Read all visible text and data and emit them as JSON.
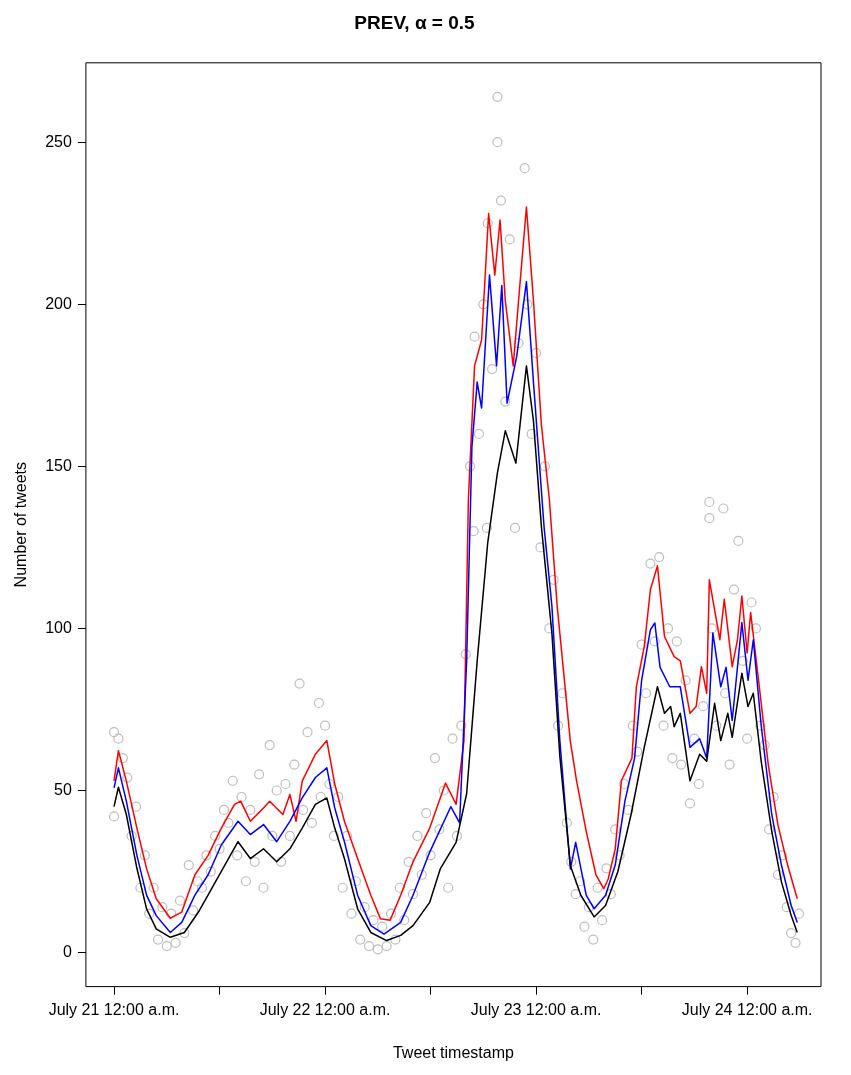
{
  "chart_data": {
    "type": "line",
    "title": "PREV, α = 0.5",
    "xlabel": "Tweet timestamp",
    "ylabel": "Number of tweets",
    "grid": false,
    "xlim": [
      "--07-20T20:48",
      "--07-24T08:24"
    ],
    "ylim": [
      -10.5,
      274.5
    ],
    "yticks": [
      0,
      50,
      100,
      150,
      200,
      250
    ],
    "xticks": [
      {
        "value": "--07-21T00:00",
        "label": "July 21 12:00 a.m."
      },
      {
        "value": "--07-21T12:00",
        "label": null
      },
      {
        "value": "--07-22T00:00",
        "label": "July 22 12:00 a.m."
      },
      {
        "value": "--07-22T12:00",
        "label": null
      },
      {
        "value": "--07-23T00:00",
        "label": "July 23 12:00 a.m."
      },
      {
        "value": "--07-23T12:00",
        "label": null
      },
      {
        "value": "--07-24T00:00",
        "label": "July 24 12:00 a.m."
      }
    ],
    "series": [
      {
        "type": "scatter",
        "marker": "circle",
        "color": "#bebebe",
        "x": [
          "--07-21T00:00",
          "--07-21T00:00",
          "--07-21T00:30",
          "--07-21T01:00",
          "--07-21T01:30",
          "--07-21T02:00",
          "--07-21T02:30",
          "--07-21T03:00",
          "--07-21T03:30",
          "--07-21T04:00",
          "--07-21T04:30",
          "--07-21T05:00",
          "--07-21T05:30",
          "--07-21T06:00",
          "--07-21T06:30",
          "--07-21T07:00",
          "--07-21T07:30",
          "--07-21T08:00",
          "--07-21T08:30",
          "--07-21T09:00",
          "--07-21T09:30",
          "--07-21T10:00",
          "--07-21T10:30",
          "--07-21T11:00",
          "--07-21T11:30",
          "--07-21T12:00",
          "--07-21T12:30",
          "--07-21T13:00",
          "--07-21T13:30",
          "--07-21T14:00",
          "--07-21T14:30",
          "--07-21T15:00",
          "--07-21T15:30",
          "--07-21T16:00",
          "--07-21T16:30",
          "--07-21T17:00",
          "--07-21T17:42",
          "--07-21T18:00",
          "--07-21T18:30",
          "--07-21T19:00",
          "--07-21T19:30",
          "--07-21T20:00",
          "--07-21T20:30",
          "--07-21T21:06",
          "--07-21T21:30",
          "--07-21T22:00",
          "--07-21T22:30",
          "--07-21T23:18",
          "--07-21T23:30",
          "--07-22T00:00",
          "--07-22T00:30",
          "--07-22T01:00",
          "--07-22T01:30",
          "--07-22T02:00",
          "--07-22T02:30",
          "--07-22T03:00",
          "--07-22T03:30",
          "--07-22T04:00",
          "--07-22T04:30",
          "--07-22T05:00",
          "--07-22T05:30",
          "--07-22T06:00",
          "--07-22T06:30",
          "--07-22T07:00",
          "--07-22T07:30",
          "--07-22T08:00",
          "--07-22T08:30",
          "--07-22T09:00",
          "--07-22T09:30",
          "--07-22T10:00",
          "--07-22T10:30",
          "--07-22T11:00",
          "--07-22T11:30",
          "--07-22T12:00",
          "--07-22T12:30",
          "--07-22T13:00",
          "--07-22T13:30",
          "--07-22T14:00",
          "--07-22T14:30",
          "--07-22T15:00",
          "--07-22T15:30",
          "--07-22T16:00",
          "--07-22T16:30",
          "--07-22T16:54",
          "--07-22T17:00",
          "--07-22T17:30",
          "--07-22T18:00",
          "--07-22T18:24",
          "--07-22T18:30",
          "--07-22T19:00",
          "--07-22T19:36",
          "--07-22T19:36",
          "--07-22T20:00",
          "--07-22T20:30",
          "--07-22T21:00",
          "--07-22T21:36",
          "--07-22T22:00",
          "--07-22T22:42",
          "--07-22T23:00",
          "--07-22T23:30",
          "--07-23T00:00",
          "--07-23T00:30",
          "--07-23T01:00",
          "--07-23T01:30",
          "--07-23T02:00",
          "--07-23T02:30",
          "--07-23T03:00",
          "--07-23T03:30",
          "--07-23T04:00",
          "--07-23T04:30",
          "--07-23T05:00",
          "--07-23T05:30",
          "--07-23T06:00",
          "--07-23T06:30",
          "--07-23T07:00",
          "--07-23T07:30",
          "--07-23T08:00",
          "--07-23T08:30",
          "--07-23T09:00",
          "--07-23T09:30",
          "--07-23T10:00",
          "--07-23T10:30",
          "--07-23T11:00",
          "--07-23T11:30",
          "--07-23T12:00",
          "--07-23T12:30",
          "--07-23T13:00",
          "--07-23T13:30",
          "--07-23T14:00",
          "--07-23T14:30",
          "--07-23T15:00",
          "--07-23T15:30",
          "--07-23T16:00",
          "--07-23T16:30",
          "--07-23T17:00",
          "--07-23T17:30",
          "--07-23T18:00",
          "--07-23T18:30",
          "--07-23T19:00",
          "--07-23T19:42",
          "--07-23T19:42",
          "--07-23T20:00",
          "--07-23T20:30",
          "--07-23T21:18",
          "--07-23T21:30",
          "--07-23T22:00",
          "--07-23T22:30",
          "--07-23T23:00",
          "--07-23T23:30",
          "--07-24T00:00",
          "--07-24T00:30",
          "--07-24T01:00",
          "--07-24T01:30",
          "--07-24T02:00",
          "--07-24T02:30",
          "--07-24T03:00",
          "--07-24T03:30",
          "--07-24T04:00",
          "--07-24T04:30",
          "--07-24T05:00",
          "--07-24T05:30",
          "--07-24T05:54"
        ],
        "values": [
          68,
          42,
          66,
          60,
          54,
          36,
          45,
          20,
          30,
          12,
          20,
          4,
          14,
          2,
          12,
          3,
          16,
          6,
          27,
          13,
          22,
          20,
          30,
          25,
          36,
          32,
          44,
          40,
          53,
          30,
          48,
          22,
          44,
          28,
          55,
          20,
          64,
          36,
          50,
          28,
          52,
          36,
          58,
          83,
          44,
          68,
          40,
          77,
          48,
          70,
          52,
          36,
          48,
          20,
          36,
          12,
          22,
          4,
          14,
          2,
          10,
          1,
          8,
          2,
          12,
          4,
          20,
          10,
          28,
          18,
          36,
          24,
          43,
          30,
          60,
          38,
          50,
          20,
          66,
          36,
          70,
          92,
          150,
          130,
          190,
          160,
          200,
          131,
          225,
          180,
          264,
          250,
          232,
          170,
          220,
          131,
          188,
          242,
          200,
          160,
          185,
          125,
          150,
          100,
          115,
          70,
          80,
          40,
          28,
          18,
          22,
          8,
          14,
          4,
          20,
          10,
          26,
          18,
          38,
          30,
          52,
          44,
          70,
          62,
          95,
          80,
          120,
          96,
          122,
          70,
          100,
          60,
          96,
          58,
          84,
          46,
          66,
          52,
          76,
          139,
          134,
          100,
          70,
          137,
          80,
          58,
          112,
          127,
          90,
          66,
          108,
          100,
          70,
          64,
          38,
          48,
          24,
          30,
          14,
          6,
          3,
          12
        ]
      },
      {
        "type": "line",
        "color": "#ff0000",
        "x": [
          "--07-21T00:00",
          "--07-21T00:30",
          "--07-21T01:24",
          "--07-21T02:36",
          "--07-21T03:42",
          "--07-21T04:48",
          "--07-21T06:24",
          "--07-21T07:42",
          "--07-21T09:12",
          "--07-21T10:42",
          "--07-21T12:12",
          "--07-21T13:42",
          "--07-21T14:24",
          "--07-21T15:30",
          "--07-21T17:00",
          "--07-21T17:42",
          "--07-21T19:12",
          "--07-21T20:00",
          "--07-21T20:42",
          "--07-21T21:24",
          "--07-21T22:54",
          "--07-22T00:12",
          "--07-22T01:06",
          "--07-22T02:12",
          "--07-22T03:42",
          "--07-22T05:12",
          "--07-22T06:18",
          "--07-22T07:24",
          "--07-22T08:36",
          "--07-22T10:00",
          "--07-22T11:54",
          "--07-22T13:42",
          "--07-22T14:54",
          "--07-22T15:48",
          "--07-22T16:18",
          "--07-22T17:00",
          "--07-22T17:48",
          "--07-22T18:36",
          "--07-22T19:18",
          "--07-22T19:54",
          "--07-22T20:30",
          "--07-22T21:24",
          "--07-22T22:00",
          "--07-22T22:54",
          "--07-22T23:42",
          "--07-23T00:36",
          "--07-23T01:30",
          "--07-23T02:24",
          "--07-23T03:54",
          "--07-23T04:36",
          "--07-23T05:42",
          "--07-23T06:48",
          "--07-23T07:42",
          "--07-23T08:12",
          "--07-23T09:00",
          "--07-23T09:42",
          "--07-23T10:54",
          "--07-23T11:24",
          "--07-23T12:18",
          "--07-23T13:00",
          "--07-23T13:48",
          "--07-23T14:36",
          "--07-23T15:42",
          "--07-23T16:24",
          "--07-23T17:30",
          "--07-23T18:12",
          "--07-23T18:48",
          "--07-23T19:24",
          "--07-23T19:42",
          "--07-23T20:54",
          "--07-23T21:24",
          "--07-23T22:18",
          "--07-23T22:54",
          "--07-23T23:24",
          "--07-24T00:00",
          "--07-24T00:24",
          "--07-24T01:18",
          "--07-24T02:24",
          "--07-24T03:30",
          "--07-24T04:36",
          "--07-24T05:42"
        ],
        "values": [
          53,
          62.3,
          52.9,
          38.4,
          25.9,
          16.6,
          10.6,
          12.5,
          24,
          30,
          38.4,
          45.7,
          46.7,
          40.5,
          44.6,
          46.7,
          42.6,
          48.8,
          40.5,
          52.9,
          61.2,
          65.4,
          52,
          40.5,
          29,
          17.7,
          10.4,
          10,
          17.7,
          28,
          38.4,
          52.3,
          45.7,
          65.4,
          140,
          181,
          189,
          228,
          209,
          226,
          201,
          181,
          201,
          230,
          201,
          162.8,
          140,
          106.8,
          65,
          53,
          37.4,
          24,
          19.7,
          22.7,
          32,
          53,
          60,
          82,
          94.4,
          112,
          119.3,
          97.5,
          91.3,
          90,
          73.8,
          75.9,
          88.2,
          80,
          115,
          96.5,
          109,
          88.2,
          96.5,
          110,
          92.4,
          104.9,
          84,
          58,
          39.4,
          27,
          16.6
        ]
      },
      {
        "type": "line",
        "color": "#0000ff",
        "x": [
          "--07-21T00:00",
          "--07-21T00:30",
          "--07-21T01:24",
          "--07-21T02:36",
          "--07-21T03:42",
          "--07-21T04:48",
          "--07-21T06:24",
          "--07-21T07:42",
          "--07-21T09:12",
          "--07-21T10:42",
          "--07-21T12:12",
          "--07-21T14:06",
          "--07-21T15:30",
          "--07-21T17:00",
          "--07-21T18:30",
          "--07-21T20:00",
          "--07-21T21:24",
          "--07-21T22:54",
          "--07-22T00:12",
          "--07-22T01:06",
          "--07-22T02:12",
          "--07-22T03:42",
          "--07-22T05:12",
          "--07-22T06:42",
          "--07-22T08:36",
          "--07-22T10:00",
          "--07-22T11:54",
          "--07-22T14:18",
          "--07-22T15:18",
          "--07-22T16:06",
          "--07-22T16:42",
          "--07-22T17:18",
          "--07-22T17:48",
          "--07-22T18:42",
          "--07-22T19:30",
          "--07-22T20:06",
          "--07-22T20:42",
          "--07-22T21:48",
          "--07-22T22:54",
          "--07-22T23:42",
          "--07-23T00:54",
          "--07-23T01:48",
          "--07-23T02:42",
          "--07-23T03:54",
          "--07-23T04:30",
          "--07-23T05:42",
          "--07-23T06:36",
          "--07-23T07:54",
          "--07-23T09:00",
          "--07-23T10:06",
          "--07-23T11:12",
          "--07-23T12:00",
          "--07-23T13:00",
          "--07-23T13:30",
          "--07-23T14:06",
          "--07-23T15:12",
          "--07-23T16:24",
          "--07-23T17:30",
          "--07-23T18:36",
          "--07-23T19:24",
          "--07-23T20:06",
          "--07-23T21:00",
          "--07-23T21:36",
          "--07-23T22:18",
          "--07-23T23:24",
          "--07-24T00:06",
          "--07-24T00:42",
          "--07-24T01:36",
          "--07-24T02:48",
          "--07-24T03:54",
          "--07-24T05:00",
          "--07-24T05:42"
        ],
        "values": [
          50.8,
          57,
          46.7,
          30,
          17.7,
          11.4,
          6.2,
          9.3,
          17.7,
          24,
          33.2,
          40.5,
          36.4,
          39.5,
          34.2,
          40.5,
          47.7,
          54,
          57,
          44.6,
          34.2,
          17.7,
          8.3,
          5.7,
          9.3,
          17.7,
          31,
          45,
          40,
          90,
          156,
          176,
          168,
          209,
          181,
          205.8,
          169.5,
          184,
          207,
          176,
          131.5,
          106.8,
          65.4,
          25.8,
          34,
          17.7,
          13.5,
          17.7,
          27,
          46.7,
          60,
          84,
          99.6,
          101.7,
          88,
          82,
          82,
          63.3,
          66,
          60,
          98.6,
          82,
          88,
          71.6,
          101.8,
          84,
          96.5,
          70,
          42.6,
          27,
          14.6,
          9.3
        ]
      },
      {
        "type": "line",
        "color": "#000000",
        "x": [
          "--07-21T00:00",
          "--07-21T00:30",
          "--07-21T01:24",
          "--07-21T02:36",
          "--07-21T03:42",
          "--07-21T04:48",
          "--07-21T06:24",
          "--07-21T08:00",
          "--07-21T09:36",
          "--07-21T11:06",
          "--07-21T12:36",
          "--07-21T14:06",
          "--07-21T15:30",
          "--07-21T17:00",
          "--07-21T18:30",
          "--07-21T20:00",
          "--07-21T21:24",
          "--07-21T22:54",
          "--07-22T00:12",
          "--07-22T01:06",
          "--07-22T02:12",
          "--07-22T03:42",
          "--07-22T05:12",
          "--07-22T07:00",
          "--07-22T08:36",
          "--07-22T10:00",
          "--07-22T11:54",
          "--07-22T13:06",
          "--07-22T14:54",
          "--07-22T16:06",
          "--07-22T17:18",
          "--07-22T18:30",
          "--07-22T19:36",
          "--07-22T20:30",
          "--07-22T21:42",
          "--07-22T22:54",
          "--07-22T23:42",
          "--07-23T00:36",
          "--07-23T01:48",
          "--07-23T02:42",
          "--07-23T03:54",
          "--07-23T05:06",
          "--07-23T06:36",
          "--07-23T07:54",
          "--07-23T09:18",
          "--07-23T10:48",
          "--07-23T12:18",
          "--07-23T13:48",
          "--07-23T14:36",
          "--07-23T15:18",
          "--07-23T15:42",
          "--07-23T16:24",
          "--07-23T17:30",
          "--07-23T18:36",
          "--07-23T19:24",
          "--07-23T20:18",
          "--07-23T21:00",
          "--07-23T21:48",
          "--07-23T22:18",
          "--07-23T23:24",
          "--07-24T00:06",
          "--07-24T00:42",
          "--07-24T01:36",
          "--07-24T02:48",
          "--07-24T03:54",
          "--07-24T05:00",
          "--07-24T05:42"
        ],
        "values": [
          45,
          51,
          42.6,
          26,
          13.5,
          7.3,
          4.7,
          6.2,
          12.5,
          19.7,
          27,
          34.2,
          29,
          32,
          28,
          32,
          38.4,
          45.7,
          47.7,
          38.4,
          29,
          13.5,
          6.2,
          3.7,
          5.3,
          8.3,
          15.5,
          25.8,
          34,
          49,
          90,
          126.5,
          148,
          161,
          151,
          181,
          164,
          131.5,
          98.4,
          60.5,
          26.8,
          17.6,
          11,
          14.5,
          25,
          42.6,
          63.3,
          82,
          73.8,
          75.9,
          69.7,
          73.8,
          53,
          61.2,
          59,
          76.9,
          65.4,
          73.8,
          66.4,
          86.2,
          75.9,
          80,
          59,
          37.4,
          21.8,
          11.5,
          6.2
        ]
      }
    ]
  }
}
